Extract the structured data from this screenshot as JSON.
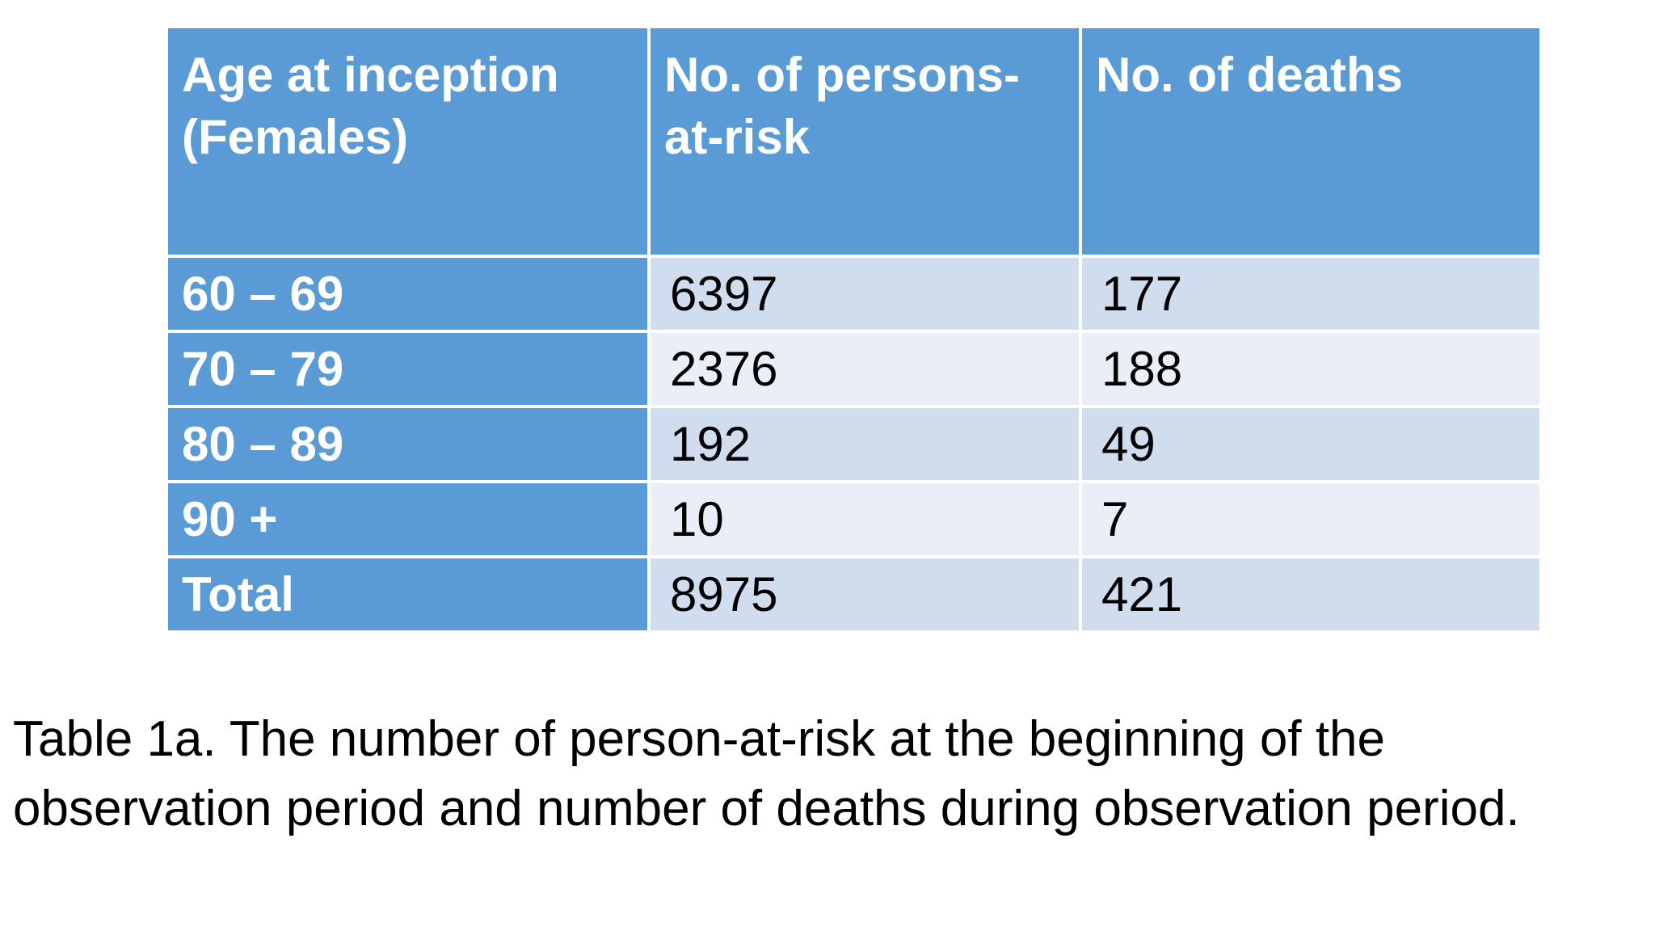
{
  "table": {
    "headers": [
      "Age at inception (Females)",
      "No. of persons-at-risk",
      "No. of deaths"
    ],
    "rows": [
      {
        "age": "60 – 69",
        "at_risk": "6397",
        "deaths": "177"
      },
      {
        "age": "70 – 79",
        "at_risk": "2376",
        "deaths": "188"
      },
      {
        "age": "80 – 89",
        "at_risk": "192",
        "deaths": "49"
      },
      {
        "age": "90 +",
        "at_risk": "10",
        "deaths": "7"
      },
      {
        "age": "Total",
        "at_risk": "8975",
        "deaths": "421"
      }
    ]
  },
  "caption": {
    "full_text": "Table 1a. The number of person-at-risk at the beginning of the observation period and number of deaths during observation period.",
    "lines": [
      "Table 1a. The number of person-at-risk at the beginning of the",
      "observation period and number of deaths during observation period."
    ]
  },
  "colors": {
    "header_blue": "#5B9BD5",
    "band_dark": "#D0DDEE",
    "band_light": "#EAEEF6",
    "header_text": "#FFFFFF",
    "body_text": "#000000",
    "background": "#FFFFFF"
  },
  "chart_data": {
    "type": "table",
    "title": "Table 1a. The number of person-at-risk at the beginning of the observation period and number of deaths during observation period.",
    "columns": [
      "Age at inception (Females)",
      "No. of persons-at-risk",
      "No. of deaths"
    ],
    "rows": [
      [
        "60 – 69",
        6397,
        177
      ],
      [
        "70 – 79",
        2376,
        188
      ],
      [
        "80 – 89",
        192,
        49
      ],
      [
        "90 +",
        10,
        7
      ],
      [
        "Total",
        8975,
        421
      ]
    ],
    "layout_hints": {
      "header_fill": "#5B9BD5",
      "banded_rows": true,
      "caption_position": "below"
    }
  }
}
